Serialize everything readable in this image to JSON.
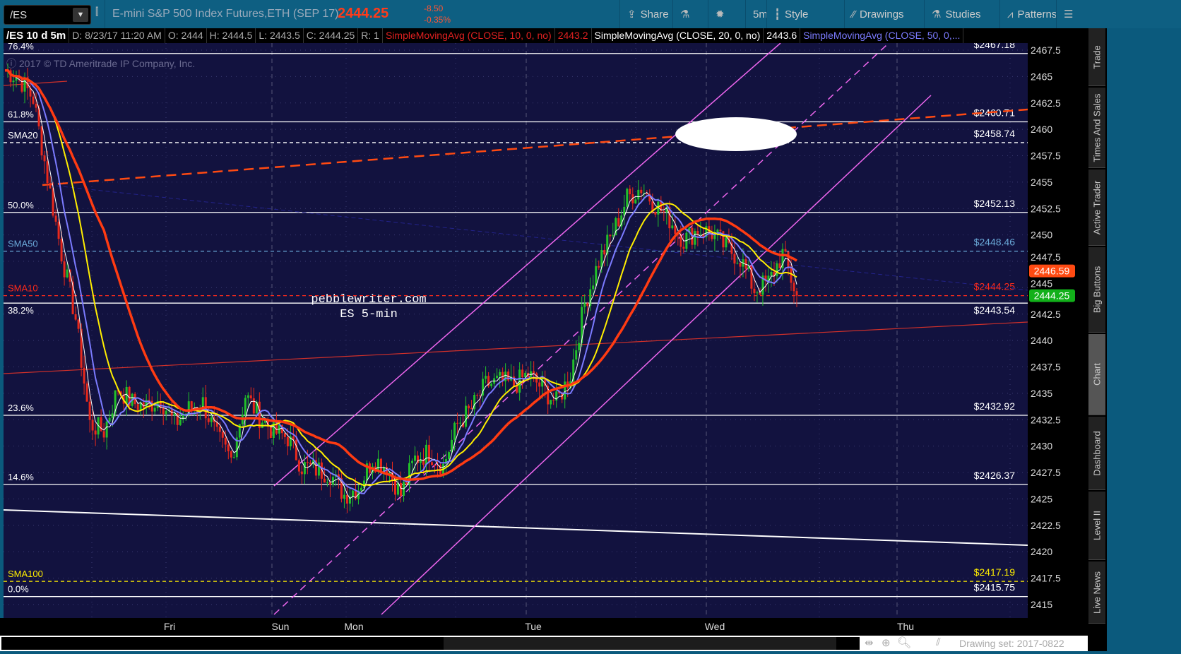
{
  "header": {
    "symbol": "/ES",
    "description": "E-mini S&P 500 Index Futures,ETH (SEP 17)",
    "last": "2444.25",
    "change": "-8.50",
    "change_pct": "-0.35%",
    "toolbar": [
      {
        "label": "Share",
        "icon": "share-icon"
      },
      {
        "label": "",
        "icon": "flask-icon"
      },
      {
        "label": "",
        "icon": "gear-icon"
      },
      {
        "label": "5m",
        "icon": ""
      },
      {
        "label": "Style",
        "icon": "candle-icon"
      },
      {
        "label": "Drawings",
        "icon": "pencil-icon"
      },
      {
        "label": "Studies",
        "icon": "flask-icon"
      },
      {
        "label": "Patterns",
        "icon": "patterns-icon"
      },
      {
        "label": "",
        "icon": "menu-icon"
      }
    ]
  },
  "info": {
    "title": "/ES 10 d 5m",
    "date": "D: 8/23/17 11:20 AM",
    "open": "O: 2444",
    "high": "H: 2444.5",
    "low": "L: 2443.5",
    "close": "C: 2444.25",
    "range": "R: 1",
    "sma10": "SimpleMovingAvg (CLOSE, 10, 0, no)",
    "sma10_val": "2443.2",
    "sma20": "SimpleMovingAvg (CLOSE, 20, 0, no)",
    "sma20_val": "2443.6",
    "sma50": "SimpleMovingAvg (CLOSE, 50, 0,..."
  },
  "copyright": "2017 © TD Ameritrade IP Company, Inc.",
  "watermark": {
    "line1": "pebblewriter.com",
    "line2": "ES 5-min"
  },
  "sidebar": [
    "Trade",
    "Times And Sales",
    "Active Trader",
    "Big Buttons",
    "Chart",
    "Dashboard",
    "Level II",
    "Live News"
  ],
  "active_tab": "Chart",
  "footer": {
    "drawing_set": "Drawing set: 2017-0822"
  },
  "colors": {
    "background": "#12123f",
    "up": "#22c02a",
    "down": "#e8291c",
    "sma_white": "#ffffff",
    "sma_blue": "#7b7bff",
    "sma_yellow": "#ffee00",
    "sma_red": "#ff3b12",
    "channel": "#ee66ee"
  },
  "chart_data": {
    "type": "candlestick",
    "x_ticks": [
      "Fri",
      "Sun",
      "Mon",
      "Tue",
      "Wed",
      "Thu"
    ],
    "y_ticks": [
      "2467.5",
      "2465",
      "2462.5",
      "2460",
      "2457.5",
      "2455",
      "2452.5",
      "2450",
      "2447.5",
      "2445",
      "2442.5",
      "2440",
      "2437.5",
      "2435",
      "2432.5",
      "2430",
      "2427.5",
      "2425",
      "2422.5",
      "2420",
      "2417.5",
      "2415"
    ],
    "ylim": [
      2413.5,
      2469
    ],
    "closes": [
      2465.6,
      2464.9,
      2462.9,
      2455.5,
      2448.2,
      2442.1,
      2432.1,
      2431.4,
      2435.5,
      2434.1,
      2433.8,
      2434.5,
      2432.1,
      2433.5,
      2434.1,
      2430.8,
      2428.8,
      2434.8,
      2432.8,
      2431.4,
      2430.8,
      2428.1,
      2427.8,
      2427.4,
      2425.4,
      2426.1,
      2428.8,
      2428.1,
      2425.4,
      2428.8,
      2429.4,
      2428.1,
      2432.1,
      2433.5,
      2435.8,
      2436.1,
      2435.8,
      2436.8,
      2435.5,
      2434.1,
      2436.8,
      2443.5,
      2447.5,
      2450.2,
      2453.5,
      2454.5,
      2452.9,
      2451.5,
      2449.5,
      2450.5,
      2450.2,
      2448.8,
      2447.8,
      2444.8,
      2445.5,
      2448.2,
      2444.25
    ],
    "levels": [
      {
        "label": "76.4%",
        "price": "$2467.18",
        "value": 2467.18,
        "style": "solid",
        "color": "#ffffff"
      },
      {
        "label": "61.8%",
        "price": "$2460.71",
        "value": 2460.71,
        "style": "solid",
        "color": "#ffffff"
      },
      {
        "label": "SMA20",
        "price": "$2458.74",
        "value": 2458.74,
        "style": "dashed",
        "color": "#ffffff"
      },
      {
        "label": "50.0%",
        "price": "$2452.13",
        "value": 2452.13,
        "style": "solid",
        "color": "#ffffff"
      },
      {
        "label": "SMA50",
        "price": "$2448.46",
        "value": 2448.46,
        "style": "dashed",
        "color": "#6aa8d8"
      },
      {
        "label": "SMA10",
        "price": "$2444.25",
        "value": 2444.25,
        "style": "dashed",
        "color": "#ff2a1a"
      },
      {
        "label": "38.2%",
        "price": "$2443.54",
        "value": 2443.54,
        "style": "solid",
        "color": "#ffffff"
      },
      {
        "label": "23.6%",
        "price": "$2432.92",
        "value": 2432.92,
        "style": "solid",
        "color": "#ffffff"
      },
      {
        "label": "14.6%",
        "price": "$2426.37",
        "value": 2426.37,
        "style": "solid",
        "color": "#ffffff"
      },
      {
        "label": "SMA100",
        "price": "$2417.19",
        "value": 2417.19,
        "style": "dashed",
        "color": "#ffee00"
      },
      {
        "label": "0.0%",
        "price": "$2415.75",
        "value": 2415.75,
        "style": "solid",
        "color": "#ffffff"
      }
    ],
    "price_bubbles": [
      {
        "value": "2446.59",
        "color": "#ff4a12"
      },
      {
        "value": "2444.25",
        "color": "#12b01a"
      }
    ]
  }
}
